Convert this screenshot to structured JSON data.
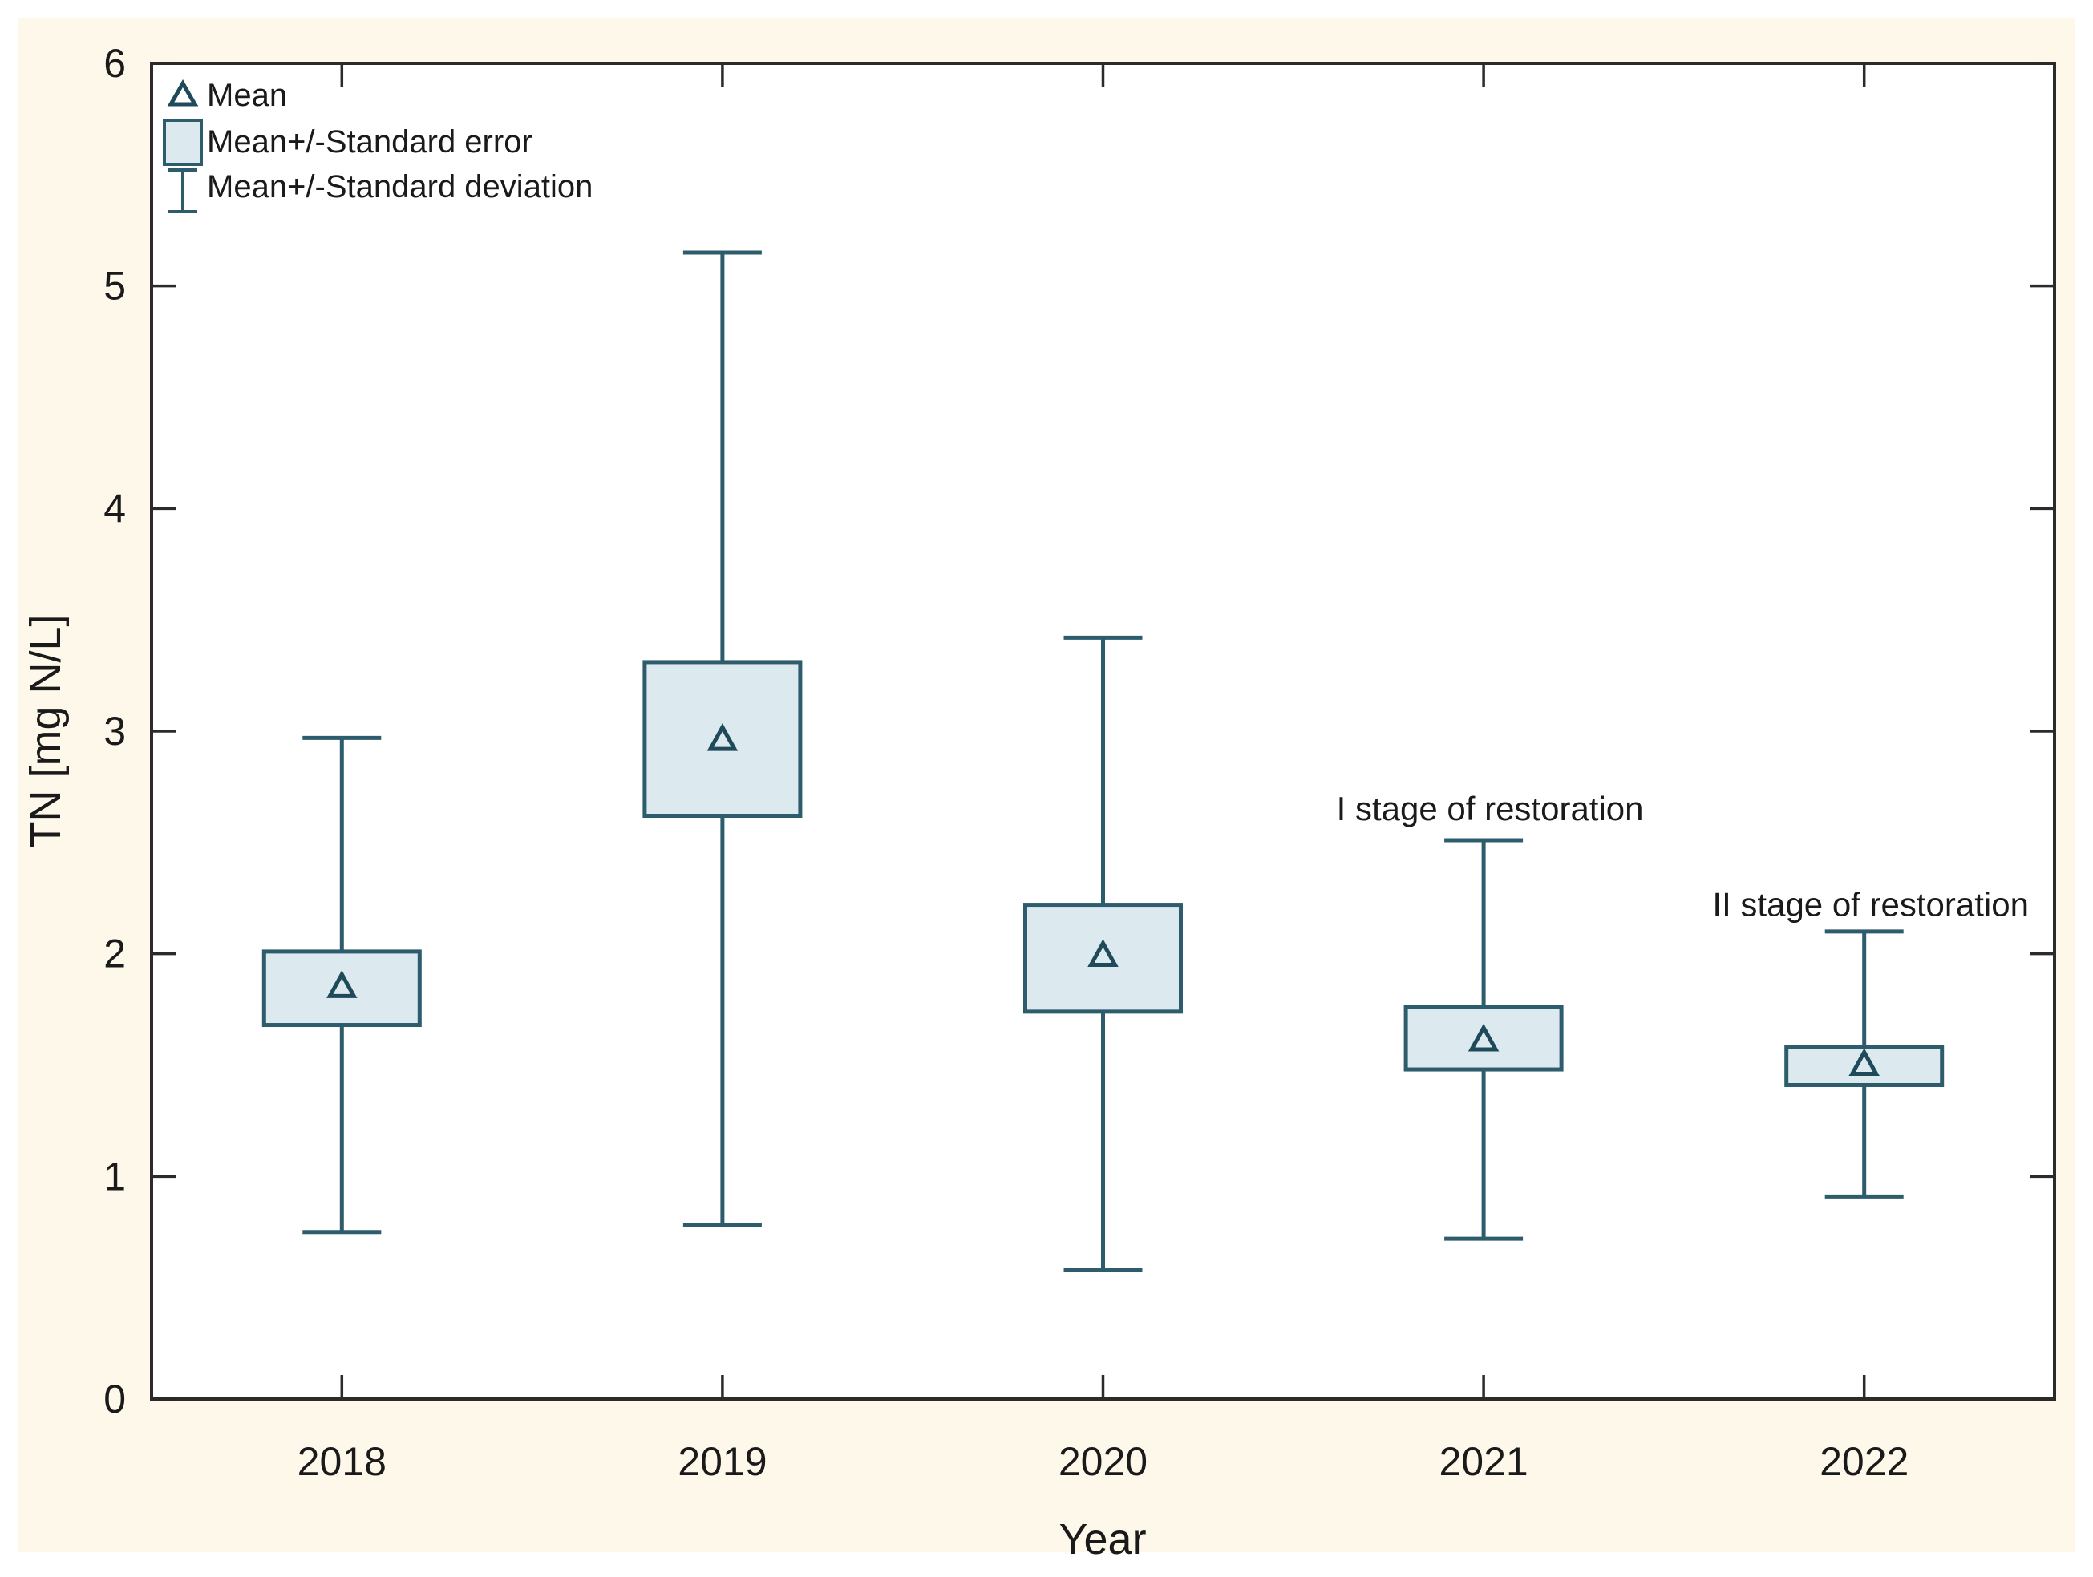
{
  "figure": {
    "type_label": "mean-whisker-box-plot",
    "background_color": "#fdf8e9",
    "plot_background_color": "#ffffff",
    "plot_border_color": "#2b2b2b",
    "text_color": "#1a1a1a"
  },
  "chart_data": {
    "type": "box",
    "box_style": "mean-se-sd",
    "title": "",
    "xlabel": "Year",
    "ylabel": "TN [mg N/L]",
    "ylim": [
      0,
      6
    ],
    "ytick_labels": [
      "0",
      "1",
      "2",
      "3",
      "4",
      "5",
      "6"
    ],
    "ytick_values": [
      0,
      1,
      2,
      3,
      4,
      5,
      6
    ],
    "categories": [
      "2018",
      "2019",
      "2020",
      "2021",
      "2022"
    ],
    "grid": false,
    "legend_position": "top-left-inside",
    "series": [
      {
        "category": "2018",
        "mean": 1.85,
        "se_low": 1.68,
        "se_high": 2.01,
        "sd_low": 0.75,
        "sd_high": 2.97
      },
      {
        "category": "2019",
        "mean": 2.96,
        "se_low": 2.62,
        "se_high": 3.31,
        "sd_low": 0.78,
        "sd_high": 5.15
      },
      {
        "category": "2020",
        "mean": 1.99,
        "se_low": 1.74,
        "se_high": 2.22,
        "sd_low": 0.58,
        "sd_high": 3.42
      },
      {
        "category": "2021",
        "mean": 1.61,
        "se_low": 1.48,
        "se_high": 1.76,
        "sd_low": 0.72,
        "sd_high": 2.51
      },
      {
        "category": "2022",
        "mean": 1.5,
        "se_low": 1.41,
        "se_high": 1.58,
        "sd_low": 0.91,
        "sd_high": 2.1
      }
    ],
    "annotations": [
      {
        "text": "I stage of restoration",
        "category": "2021",
        "y": 2.65
      },
      {
        "text": "II stage of restoration",
        "category": "2022",
        "y": 2.22
      }
    ],
    "legend": [
      {
        "marker": "triangle",
        "label": "Mean"
      },
      {
        "marker": "box",
        "label": "Mean+/-Standard error"
      },
      {
        "marker": "whisker",
        "label": "Mean+/-Standard deviation"
      }
    ],
    "colors": {
      "box_fill": "#dceaf0",
      "box_stroke": "#2d5c6d",
      "whisker_stroke": "#2d5c6d",
      "marker_stroke": "#1f4a5a"
    }
  }
}
